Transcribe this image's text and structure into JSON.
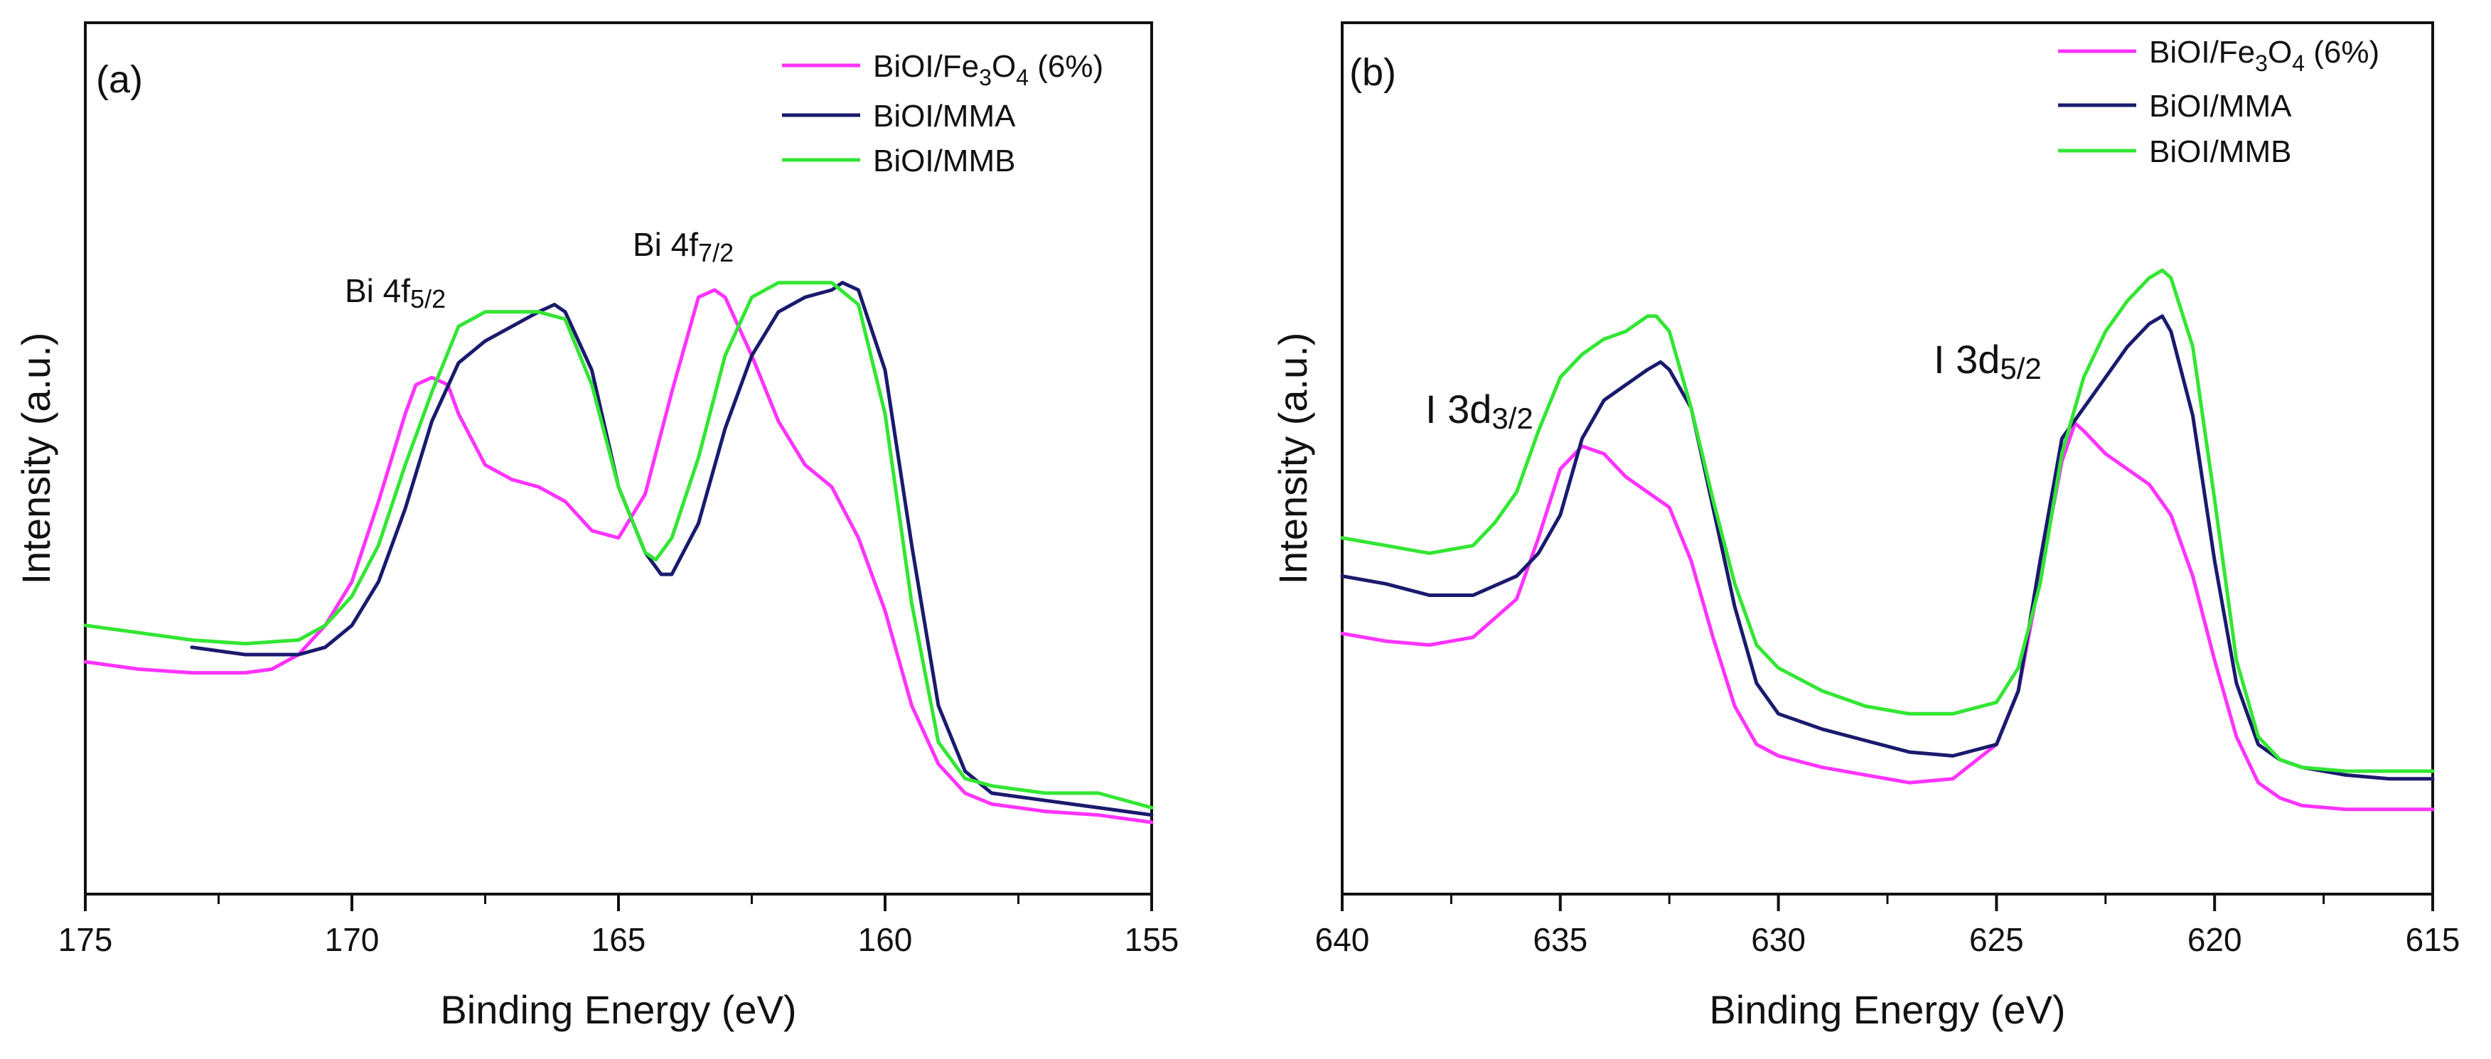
{
  "chart_data": [
    {
      "type": "line",
      "panel_label": "(a)",
      "xlabel": "Binding Energy (eV)",
      "ylabel": "Intensity (a.u.)",
      "xlim": [
        175,
        155
      ],
      "ylim": [
        0,
        100
      ],
      "x_reversed": true,
      "xticks": [
        "175",
        "170",
        "165",
        "160",
        "155"
      ],
      "xtick_values": [
        175,
        170,
        165,
        160,
        155
      ],
      "yticks": [],
      "grid": false,
      "legend_position": "top-right",
      "legend": [
        {
          "name_main": "BiOI/Fe",
          "sub1": "3",
          "mid": "O",
          "sub2": "4",
          "tail": " (6%)",
          "color": "#ff33ff"
        },
        {
          "name_main": "BiOI/MMA",
          "color": "#1a1a6e"
        },
        {
          "name_main": "BiOI/MMB",
          "color": "#33e633"
        }
      ],
      "annotations": [
        {
          "base": "Bi 4f",
          "sub": "5/2",
          "x": 168.5,
          "y": 70,
          "color": "#ff33ff"
        },
        {
          "base": "Bi 4f",
          "sub": "7/2",
          "x": 163.4,
          "y": 75,
          "color": "#ff33ff"
        }
      ],
      "series": [
        {
          "name": "BiOI/Fe3O4 (6%)",
          "color": "#ff33ff",
          "x": [
            175,
            174,
            173,
            172,
            171.5,
            171,
            170.5,
            170,
            169.5,
            169,
            168.8,
            168.5,
            168.2,
            168,
            167.5,
            167,
            166.5,
            166,
            165.5,
            165,
            164.5,
            164,
            163.5,
            163.2,
            163,
            162.5,
            162,
            161.5,
            161,
            160.5,
            160,
            159.5,
            159,
            158.5,
            158,
            157,
            156,
            155
          ],
          "y": [
            26,
            25,
            24.5,
            24.5,
            25,
            27,
            31,
            37,
            48,
            60,
            64,
            65,
            64,
            60,
            53,
            51,
            50,
            48,
            44,
            43,
            49,
            63,
            76,
            77,
            76,
            68,
            59,
            53,
            50,
            43,
            33,
            20,
            12,
            8,
            6.5,
            5.5,
            5,
            4
          ]
        },
        {
          "name": "BiOI/MMA",
          "color": "#1a1a6e",
          "x": [
            173,
            172,
            171,
            170.5,
            170,
            169.5,
            169,
            168.5,
            168,
            167.5,
            167,
            166.5,
            166.2,
            166,
            165.5,
            165,
            164.5,
            164.2,
            164,
            163.5,
            163,
            162.5,
            162,
            161.5,
            161,
            160.8,
            160.5,
            160,
            159.5,
            159,
            158.5,
            158,
            157,
            156,
            155
          ],
          "y": [
            28,
            27,
            27,
            28,
            31,
            37,
            47,
            59,
            67,
            70,
            72,
            74,
            75,
            74,
            66,
            50,
            41,
            38,
            38,
            45,
            58,
            68,
            74,
            76,
            77,
            78,
            77,
            66,
            42,
            20,
            11,
            8,
            7,
            6,
            5
          ]
        },
        {
          "name": "BiOI/MMB",
          "color": "#33e633",
          "x": [
            175,
            174,
            173,
            172,
            171,
            170.5,
            170,
            169.5,
            169,
            168.5,
            168,
            167.5,
            167,
            166.5,
            166,
            165.5,
            165,
            164.5,
            164.3,
            164,
            163.5,
            163,
            162.5,
            162,
            161.5,
            161,
            160.5,
            160,
            159.5,
            159,
            158.5,
            158,
            157,
            156,
            155
          ],
          "y": [
            31,
            30,
            29,
            28.5,
            29,
            31,
            35,
            42,
            53,
            63,
            72,
            74,
            74,
            74,
            73,
            64,
            50,
            41,
            40,
            43,
            54,
            68,
            76,
            78,
            78,
            78,
            75,
            60,
            34,
            15,
            10,
            9,
            8,
            8,
            6
          ]
        }
      ]
    },
    {
      "type": "line",
      "panel_label": "(b)",
      "xlabel": "Binding Energy (eV)",
      "ylabel": "Intensity (a.u.)",
      "xlim": [
        640,
        615
      ],
      "ylim": [
        0,
        100
      ],
      "x_reversed": true,
      "xticks": [
        "640",
        "635",
        "630",
        "625",
        "620",
        "615"
      ],
      "xtick_values": [
        640,
        635,
        630,
        625,
        620,
        615
      ],
      "yticks": [],
      "grid": false,
      "legend_position": "top-right",
      "legend": [
        {
          "name_main": "BiOI/Fe",
          "sub1": "3",
          "mid": "O",
          "sub2": "4",
          "tail": " (6%)",
          "color": "#ff33ff"
        },
        {
          "name_main": "BiOI/MMA",
          "color": "#1a1a6e"
        },
        {
          "name_main": "BiOI/MMB",
          "color": "#33e633"
        }
      ],
      "annotations": [
        {
          "base": "I 3d",
          "sub": "3/2",
          "x": 636.5,
          "y": 56,
          "color": "#111111"
        },
        {
          "base": "I 3d",
          "sub": "5/2",
          "x": 624.3,
          "y": 62,
          "color": "#111111"
        }
      ],
      "series": [
        {
          "name": "BiOI/Fe3O4 (6%)",
          "color": "#ff33ff",
          "x": [
            640,
            639,
            638,
            637,
            636,
            635.5,
            635,
            634.5,
            634,
            633.5,
            633,
            632.5,
            632,
            631.5,
            631,
            630.5,
            630,
            629,
            628,
            627,
            626,
            625,
            624.5,
            624,
            623.5,
            623.2,
            623,
            622.5,
            622,
            621.5,
            621,
            620.5,
            620,
            619.5,
            619,
            618.5,
            618,
            617,
            616,
            615
          ],
          "y": [
            28.5,
            27.5,
            27,
            28,
            33,
            41,
            50,
            53,
            52,
            49,
            47,
            45,
            38,
            28,
            19,
            14,
            12.5,
            11,
            10,
            9,
            9.5,
            14,
            21,
            36,
            51,
            56,
            55,
            52,
            50,
            48,
            44,
            36,
            25,
            15,
            9,
            7,
            6,
            5.5,
            5.5,
            5.5
          ]
        },
        {
          "name": "BiOI/MMA",
          "color": "#1a1a6e",
          "x": [
            640,
            639,
            638,
            637,
            636,
            635.5,
            635,
            634.5,
            634,
            633.5,
            633,
            632.7,
            632.5,
            632,
            631.5,
            631,
            630.5,
            630,
            629,
            628,
            627,
            626,
            625,
            624.5,
            624,
            623.5,
            623,
            622.5,
            622,
            621.5,
            621.2,
            621,
            620.5,
            620,
            619.5,
            619,
            618.5,
            618,
            617,
            616,
            615
          ],
          "y": [
            36,
            35,
            33.5,
            33.5,
            36,
            39,
            44,
            54,
            59,
            61,
            63,
            64,
            63,
            58,
            45,
            32,
            22,
            18,
            16,
            14.5,
            13,
            12.5,
            14,
            21,
            38,
            54,
            58,
            62,
            66,
            69,
            70,
            68,
            57,
            38,
            22,
            14,
            12,
            11,
            10,
            9.5,
            9.5
          ]
        },
        {
          "name": "BiOI/MMB",
          "color": "#33e633",
          "x": [
            640,
            639,
            638,
            637,
            636.5,
            636,
            635.5,
            635,
            634.5,
            634,
            633.5,
            633,
            632.8,
            632.5,
            632,
            631.5,
            631,
            630.5,
            630,
            629,
            628,
            627,
            626,
            625,
            624.5,
            624,
            623.5,
            623,
            622.5,
            622,
            621.5,
            621.2,
            621,
            620.5,
            620,
            619.5,
            619,
            618.5,
            618,
            617,
            616,
            615
          ],
          "y": [
            41,
            40,
            39,
            40,
            43,
            47,
            55,
            62,
            65,
            67,
            68,
            70,
            70,
            68,
            58,
            46,
            35,
            27,
            24,
            21,
            19,
            18,
            18,
            19.5,
            24,
            35,
            52,
            62,
            68,
            72,
            75,
            76,
            75,
            66,
            46,
            25,
            15,
            12,
            11,
            10.5,
            10.5,
            10.5
          ]
        }
      ]
    }
  ]
}
